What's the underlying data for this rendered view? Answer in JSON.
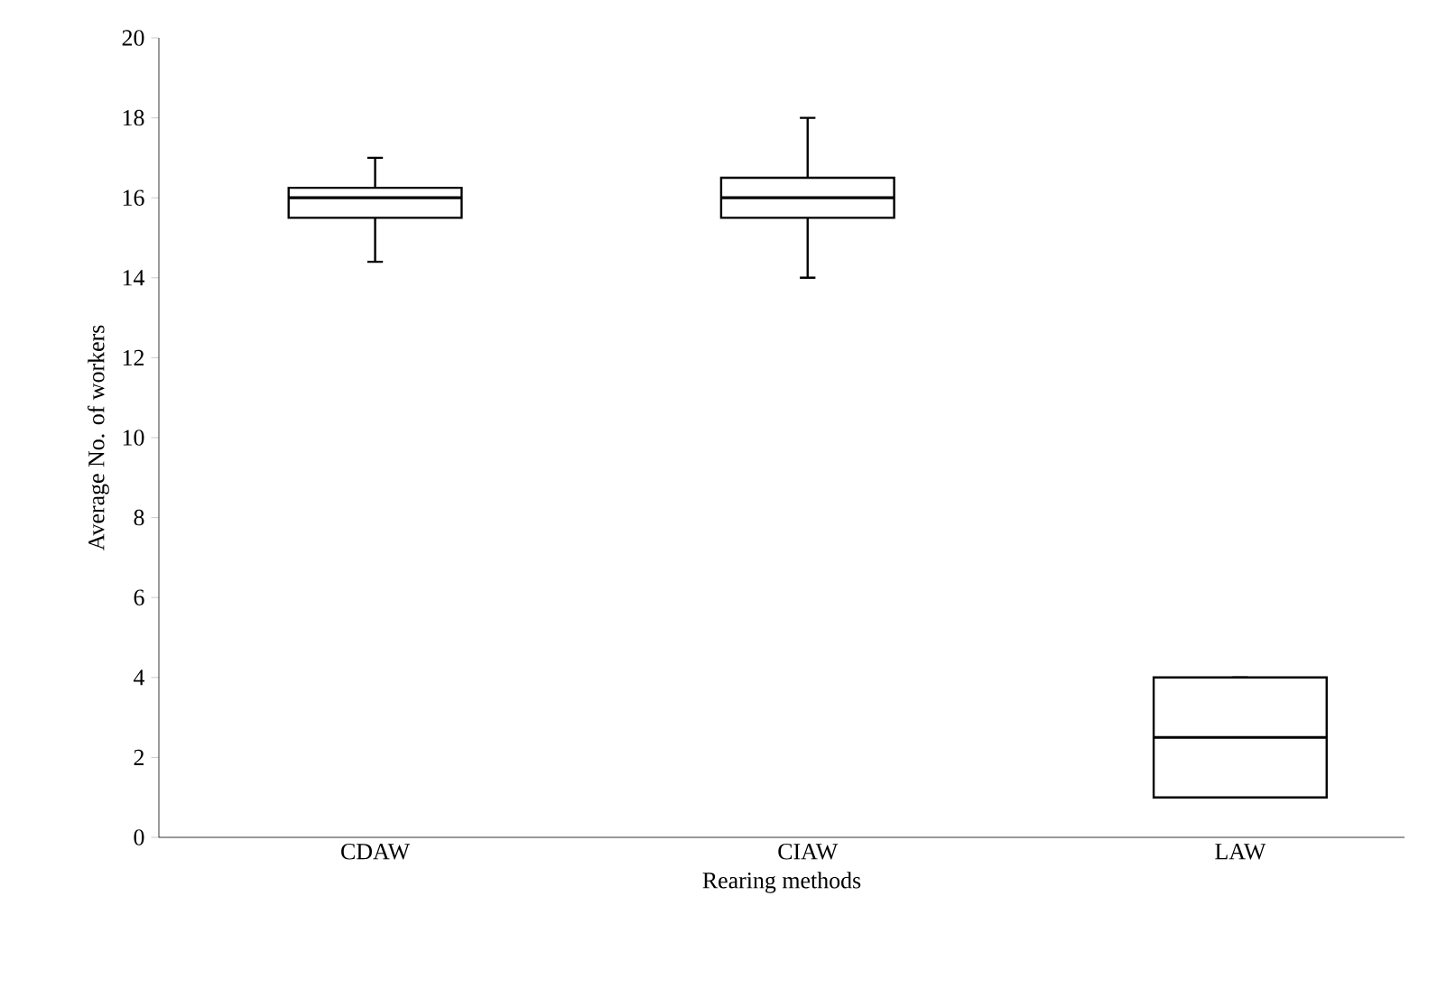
{
  "chart_data": {
    "type": "box",
    "xlabel": "Rearing methods",
    "ylabel": "Average No. of workers",
    "categories": [
      "CDAW",
      "CIAW",
      "LAW"
    ],
    "boxes": [
      {
        "low": 14.4,
        "q1": 15.5,
        "median": 16,
        "q3": 16.25,
        "high": 17
      },
      {
        "low": 14,
        "q1": 15.5,
        "median": 16,
        "q3": 16.5,
        "high": 18
      },
      {
        "low": 1,
        "q1": 1,
        "median": 2.5,
        "q3": 4,
        "high": 4
      }
    ],
    "ylim": [
      0,
      20
    ],
    "yticks": [
      0,
      2,
      4,
      6,
      8,
      10,
      12,
      14,
      16,
      18,
      20
    ],
    "grid": false
  }
}
